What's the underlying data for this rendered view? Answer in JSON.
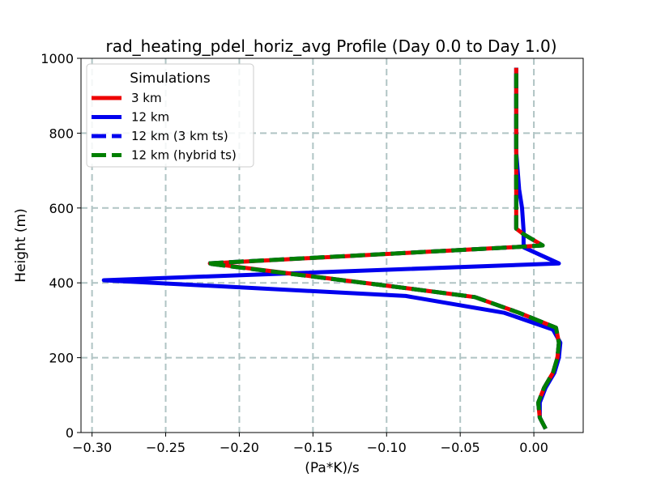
{
  "chart_data": {
    "type": "line",
    "title": "rad_heating_pdel_horiz_avg Profile (Day 0.0 to Day 1.0)",
    "xlabel": "(Pa*K)/s",
    "ylabel": "Height (m)",
    "xlim": [
      -0.3075,
      0.0335
    ],
    "ylim": [
      0,
      1000
    ],
    "xticks": [
      -0.3,
      -0.25,
      -0.2,
      -0.15,
      -0.1,
      -0.05,
      0.0
    ],
    "xtick_labels": [
      "−0.30",
      "−0.25",
      "−0.20",
      "−0.15",
      "−0.10",
      "−0.05",
      "0.00"
    ],
    "yticks": [
      0,
      200,
      400,
      600,
      800,
      1000
    ],
    "ytick_labels": [
      "0",
      "200",
      "400",
      "600",
      "800",
      "1000"
    ],
    "grid": true,
    "legend": {
      "title": "Simulations",
      "location": "top-left"
    },
    "series": [
      {
        "name": "12 km",
        "color": "#0000ee",
        "style": "solid",
        "points": [
          [
            0.008,
            10
          ],
          [
            0.004,
            40
          ],
          [
            0.004,
            80
          ],
          [
            0.008,
            120
          ],
          [
            0.014,
            160
          ],
          [
            0.017,
            200
          ],
          [
            0.018,
            240
          ],
          [
            0.013,
            275
          ],
          [
            -0.02,
            320
          ],
          [
            -0.087,
            365
          ],
          [
            -0.292,
            407
          ],
          [
            0.017,
            452
          ],
          [
            -0.007,
            495
          ],
          [
            -0.007,
            540
          ],
          [
            -0.008,
            600
          ],
          [
            -0.01,
            650
          ],
          [
            -0.011,
            700
          ],
          [
            -0.012,
            750
          ],
          [
            -0.012,
            800
          ],
          [
            -0.012,
            850
          ],
          [
            -0.012,
            900
          ],
          [
            -0.012,
            975
          ]
        ]
      },
      {
        "name": "3 km",
        "color": "#ee0000",
        "style": "solid",
        "points": [
          [
            0.008,
            10
          ],
          [
            0.004,
            40
          ],
          [
            0.003,
            80
          ],
          [
            0.007,
            120
          ],
          [
            0.013,
            160
          ],
          [
            0.016,
            200
          ],
          [
            0.017,
            240
          ],
          [
            0.015,
            280
          ],
          [
            -0.01,
            320
          ],
          [
            -0.04,
            362
          ],
          [
            -0.085,
            385
          ],
          [
            -0.22,
            452
          ],
          [
            -0.015,
            495
          ],
          [
            0.006,
            500
          ],
          [
            -0.007,
            530
          ],
          [
            -0.012,
            545
          ],
          [
            -0.012,
            600
          ],
          [
            -0.012,
            650
          ],
          [
            -0.012,
            700
          ],
          [
            -0.012,
            750
          ],
          [
            -0.012,
            800
          ],
          [
            -0.012,
            850
          ],
          [
            -0.012,
            900
          ],
          [
            -0.012,
            975
          ]
        ]
      },
      {
        "name": "12 km (3 km ts)",
        "color": "#0000ee",
        "style": "dashed",
        "points": [
          [
            0.008,
            10
          ],
          [
            0.004,
            40
          ],
          [
            0.003,
            80
          ],
          [
            0.007,
            120
          ],
          [
            0.013,
            160
          ],
          [
            0.016,
            200
          ],
          [
            0.017,
            240
          ],
          [
            0.015,
            280
          ],
          [
            -0.01,
            320
          ],
          [
            -0.04,
            362
          ],
          [
            -0.085,
            385
          ],
          [
            -0.222,
            452
          ],
          [
            -0.015,
            495
          ],
          [
            0.006,
            500
          ],
          [
            -0.007,
            530
          ],
          [
            -0.012,
            545
          ],
          [
            -0.012,
            600
          ],
          [
            -0.012,
            650
          ],
          [
            -0.012,
            700
          ],
          [
            -0.012,
            750
          ],
          [
            -0.012,
            800
          ],
          [
            -0.012,
            850
          ],
          [
            -0.012,
            900
          ],
          [
            -0.012,
            975
          ]
        ]
      },
      {
        "name": "12 km (hybrid ts)",
        "color": "#007f00",
        "style": "dashed",
        "points": [
          [
            0.008,
            10
          ],
          [
            0.004,
            40
          ],
          [
            0.003,
            80
          ],
          [
            0.007,
            120
          ],
          [
            0.013,
            160
          ],
          [
            0.016,
            200
          ],
          [
            0.017,
            240
          ],
          [
            0.015,
            280
          ],
          [
            -0.01,
            320
          ],
          [
            -0.04,
            362
          ],
          [
            -0.085,
            385
          ],
          [
            -0.222,
            452
          ],
          [
            -0.015,
            495
          ],
          [
            0.006,
            500
          ],
          [
            -0.007,
            530
          ],
          [
            -0.012,
            545
          ],
          [
            -0.012,
            600
          ],
          [
            -0.012,
            650
          ],
          [
            -0.012,
            700
          ],
          [
            -0.012,
            750
          ],
          [
            -0.012,
            800
          ],
          [
            -0.012,
            850
          ],
          [
            -0.012,
            900
          ],
          [
            -0.012,
            975
          ]
        ]
      }
    ],
    "legend_entries": [
      {
        "label": "3 km",
        "color": "#ee0000",
        "style": "solid"
      },
      {
        "label": "12 km",
        "color": "#0000ee",
        "style": "solid"
      },
      {
        "label": "12 km (3 km ts)",
        "color": "#0000ee",
        "style": "dashed"
      },
      {
        "label": "12 km (hybrid ts)",
        "color": "#007f00",
        "style": "dashed"
      }
    ]
  }
}
